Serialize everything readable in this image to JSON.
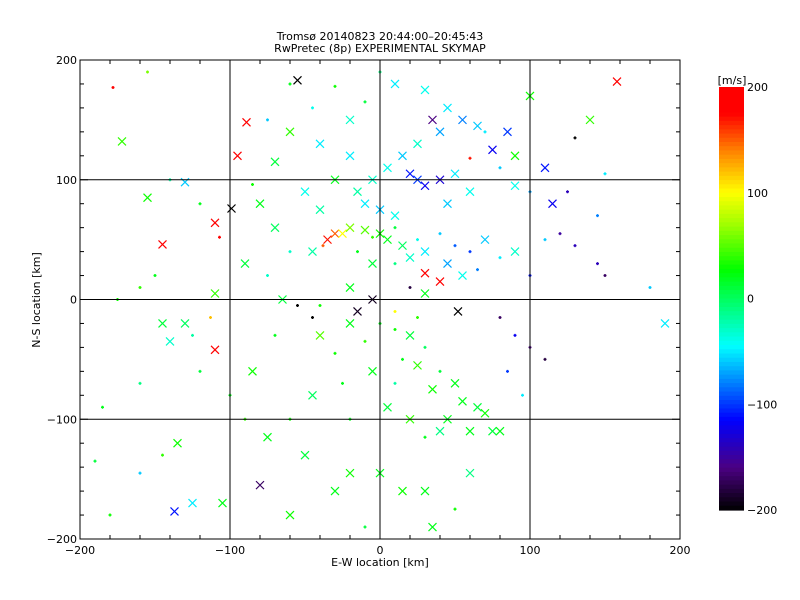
{
  "chart_data": {
    "type": "scatter",
    "title": "Tromsø 20140823 20:44:00–20:45:43",
    "subtitle": "RwPretec (8p) EXPERIMENTAL SKYMAP",
    "xlabel": "E-W location [km]",
    "ylabel": "N-S location [km]",
    "xlim": [
      -200,
      200
    ],
    "ylim": [
      -200,
      200
    ],
    "xticks": [
      "-200",
      "-100",
      "0",
      "100",
      "200"
    ],
    "yticks": [
      "-200",
      "-100",
      "0",
      "100",
      "200"
    ],
    "grid_lines": [
      -100,
      0,
      100
    ],
    "colorbar": {
      "label": "[m/s]",
      "range": [
        -200,
        200
      ],
      "ticks": [
        "200",
        "100",
        "0",
        "-100",
        "-200"
      ],
      "colormap": [
        [
          -200,
          "#000000"
        ],
        [
          -160,
          "#4b0082"
        ],
        [
          -115,
          "#0000ff"
        ],
        [
          -80,
          "#0080ff"
        ],
        [
          -45,
          "#00ffff"
        ],
        [
          -10,
          "#00ff80"
        ],
        [
          27,
          "#00ff00"
        ],
        [
          70,
          "#a0ff00"
        ],
        [
          100,
          "#ffff00"
        ],
        [
          140,
          "#ff8000"
        ],
        [
          175,
          "#ff0000"
        ],
        [
          200,
          "#ff0000"
        ]
      ]
    },
    "point_fields": [
      "x_km",
      "y_km",
      "velocity_m_s",
      "large_marker"
    ],
    "points": [
      [
        -178,
        177,
        180,
        0
      ],
      [
        -155,
        190,
        60,
        0
      ],
      [
        -172,
        132,
        40,
        1
      ],
      [
        -155,
        85,
        30,
        1
      ],
      [
        -145,
        46,
        190,
        1
      ],
      [
        -140,
        100,
        -20,
        0
      ],
      [
        -130,
        98,
        -60,
        1
      ],
      [
        -150,
        20,
        20,
        0
      ],
      [
        -160,
        10,
        40,
        0
      ],
      [
        -175,
        0,
        30,
        0
      ],
      [
        -145,
        -20,
        10,
        1
      ],
      [
        -130,
        -20,
        0,
        1
      ],
      [
        -125,
        -30,
        -20,
        0
      ],
      [
        -140,
        -35,
        -30,
        1
      ],
      [
        -110,
        -42,
        190,
        1
      ],
      [
        -120,
        -60,
        10,
        0
      ],
      [
        -160,
        -70,
        -10,
        0
      ],
      [
        -185,
        -90,
        20,
        0
      ],
      [
        -135,
        -120,
        30,
        1
      ],
      [
        -145,
        -130,
        40,
        0
      ],
      [
        -190,
        -135,
        10,
        0
      ],
      [
        -160,
        -145,
        -60,
        0
      ],
      [
        -137,
        -177,
        -110,
        1
      ],
      [
        -125,
        -170,
        -50,
        1
      ],
      [
        -105,
        -170,
        20,
        1
      ],
      [
        -180,
        -180,
        30,
        0
      ],
      [
        -80,
        -155,
        -170,
        1
      ],
      [
        -89,
        148,
        190,
        1
      ],
      [
        -99,
        76,
        -200,
        1
      ],
      [
        -110,
        64,
        190,
        1
      ],
      [
        -107,
        52,
        180,
        0
      ],
      [
        -95,
        120,
        190,
        1
      ],
      [
        -120,
        80,
        20,
        0
      ],
      [
        -85,
        96,
        30,
        0
      ],
      [
        -110,
        5,
        40,
        1
      ],
      [
        -113,
        -15,
        120,
        0
      ],
      [
        -60,
        180,
        20,
        0
      ],
      [
        -55,
        183,
        -200,
        1
      ],
      [
        -30,
        178,
        30,
        0
      ],
      [
        -75,
        150,
        -60,
        0
      ],
      [
        -60,
        140,
        40,
        1
      ],
      [
        -40,
        130,
        -50,
        1
      ],
      [
        -45,
        160,
        -40,
        0
      ],
      [
        -20,
        150,
        -30,
        1
      ],
      [
        -10,
        165,
        10,
        0
      ],
      [
        -30,
        100,
        20,
        1
      ],
      [
        -50,
        90,
        -40,
        1
      ],
      [
        -80,
        80,
        20,
        1
      ],
      [
        -70,
        60,
        0,
        1
      ],
      [
        -60,
        40,
        -30,
        0
      ],
      [
        -90,
        30,
        10,
        1
      ],
      [
        -75,
        20,
        -30,
        0
      ],
      [
        -45,
        40,
        -20,
        1
      ],
      [
        -35,
        50,
        170,
        1
      ],
      [
        -30,
        55,
        150,
        1
      ],
      [
        -38,
        45,
        150,
        0
      ],
      [
        -25,
        55,
        100,
        1
      ],
      [
        -20,
        60,
        60,
        1
      ],
      [
        -10,
        58,
        50,
        1
      ],
      [
        -5,
        52,
        40,
        0
      ],
      [
        0,
        55,
        30,
        1
      ],
      [
        5,
        50,
        20,
        1
      ],
      [
        10,
        60,
        10,
        0
      ],
      [
        15,
        45,
        0,
        1
      ],
      [
        -15,
        40,
        20,
        0
      ],
      [
        -5,
        30,
        10,
        1
      ],
      [
        10,
        30,
        -10,
        0
      ],
      [
        20,
        35,
        -30,
        1
      ],
      [
        25,
        50,
        -40,
        0
      ],
      [
        30,
        40,
        -50,
        1
      ],
      [
        40,
        55,
        -60,
        0
      ],
      [
        45,
        30,
        -70,
        1
      ],
      [
        50,
        45,
        -90,
        0
      ],
      [
        55,
        20,
        -40,
        1
      ],
      [
        60,
        40,
        -100,
        0
      ],
      [
        65,
        25,
        -80,
        0
      ],
      [
        70,
        50,
        -60,
        1
      ],
      [
        80,
        35,
        -50,
        0
      ],
      [
        90,
        40,
        -30,
        1
      ],
      [
        100,
        20,
        -110,
        0
      ],
      [
        110,
        50,
        -60,
        0
      ],
      [
        120,
        55,
        -150,
        0
      ],
      [
        130,
        45,
        -140,
        0
      ],
      [
        145,
        30,
        -140,
        0
      ],
      [
        150,
        20,
        -170,
        0
      ],
      [
        180,
        10,
        -60,
        0
      ],
      [
        190,
        -20,
        -50,
        1
      ],
      [
        20,
        10,
        -180,
        0
      ],
      [
        40,
        15,
        200,
        1
      ],
      [
        30,
        22,
        190,
        1
      ],
      [
        -15,
        -10,
        -190,
        1
      ],
      [
        -45,
        -15,
        -200,
        0
      ],
      [
        52,
        -10,
        -200,
        1
      ],
      [
        80,
        -15,
        -170,
        0
      ],
      [
        90,
        -30,
        -120,
        0
      ],
      [
        100,
        -40,
        -160,
        0
      ],
      [
        110,
        -50,
        -180,
        0
      ],
      [
        85,
        -60,
        -100,
        0
      ],
      [
        95,
        -80,
        -50,
        0
      ],
      [
        0,
        -20,
        20,
        0
      ],
      [
        10,
        -25,
        30,
        0
      ],
      [
        20,
        -30,
        10,
        1
      ],
      [
        -10,
        -35,
        40,
        0
      ],
      [
        -20,
        -20,
        20,
        1
      ],
      [
        30,
        -40,
        0,
        0
      ],
      [
        15,
        -50,
        20,
        0
      ],
      [
        25,
        -55,
        40,
        1
      ],
      [
        40,
        -60,
        10,
        0
      ],
      [
        -5,
        -60,
        20,
        1
      ],
      [
        -30,
        -45,
        30,
        0
      ],
      [
        -40,
        -30,
        50,
        1
      ],
      [
        -25,
        -70,
        20,
        0
      ],
      [
        10,
        -70,
        -20,
        0
      ],
      [
        35,
        -75,
        30,
        1
      ],
      [
        50,
        -70,
        20,
        1
      ],
      [
        55,
        -85,
        20,
        1
      ],
      [
        65,
        -90,
        10,
        1
      ],
      [
        70,
        -95,
        30,
        1
      ],
      [
        45,
        -100,
        20,
        1
      ],
      [
        40,
        -110,
        -10,
        1
      ],
      [
        60,
        -110,
        20,
        1
      ],
      [
        75,
        -110,
        10,
        1
      ],
      [
        30,
        -115,
        20,
        0
      ],
      [
        20,
        -100,
        40,
        1
      ],
      [
        5,
        -90,
        10,
        1
      ],
      [
        -20,
        -100,
        20,
        0
      ],
      [
        -45,
        -80,
        0,
        1
      ],
      [
        -60,
        -100,
        30,
        0
      ],
      [
        -75,
        -115,
        20,
        1
      ],
      [
        -50,
        -130,
        10,
        1
      ],
      [
        -30,
        -160,
        20,
        1
      ],
      [
        -20,
        -145,
        30,
        1
      ],
      [
        0,
        -145,
        20,
        1
      ],
      [
        15,
        -160,
        30,
        1
      ],
      [
        30,
        -160,
        20,
        1
      ],
      [
        50,
        -175,
        30,
        0
      ],
      [
        35,
        -190,
        20,
        1
      ],
      [
        -10,
        -190,
        10,
        0
      ],
      [
        60,
        -145,
        -10,
        1
      ],
      [
        80,
        -110,
        20,
        1
      ],
      [
        -60,
        -180,
        30,
        1
      ],
      [
        -90,
        -100,
        40,
        0
      ],
      [
        -100,
        -80,
        20,
        0
      ],
      [
        -85,
        -60,
        30,
        1
      ],
      [
        -70,
        -30,
        20,
        0
      ],
      [
        -55,
        -5,
        -200,
        0
      ],
      [
        -65,
        0,
        10,
        1
      ],
      [
        -40,
        -5,
        30,
        0
      ],
      [
        -20,
        10,
        20,
        1
      ],
      [
        -5,
        0,
        -190,
        1
      ],
      [
        10,
        -10,
        100,
        0
      ],
      [
        25,
        -15,
        40,
        0
      ],
      [
        30,
        5,
        20,
        1
      ],
      [
        0,
        190,
        -10,
        0
      ],
      [
        10,
        180,
        -50,
        1
      ],
      [
        30,
        175,
        -40,
        1
      ],
      [
        45,
        160,
        -50,
        1
      ],
      [
        55,
        150,
        -80,
        1
      ],
      [
        65,
        145,
        -60,
        1
      ],
      [
        75,
        125,
        -120,
        1
      ],
      [
        70,
        140,
        -50,
        0
      ],
      [
        40,
        140,
        -70,
        1
      ],
      [
        25,
        130,
        -30,
        1
      ],
      [
        15,
        120,
        -60,
        1
      ],
      [
        5,
        110,
        -40,
        1
      ],
      [
        20,
        105,
        -110,
        1
      ],
      [
        25,
        100,
        -100,
        1
      ],
      [
        30,
        95,
        -120,
        1
      ],
      [
        40,
        100,
        -130,
        1
      ],
      [
        50,
        105,
        -50,
        1
      ],
      [
        60,
        90,
        -40,
        1
      ],
      [
        -5,
        100,
        -30,
        1
      ],
      [
        -15,
        90,
        -20,
        1
      ],
      [
        -10,
        80,
        -50,
        1
      ],
      [
        0,
        75,
        -60,
        1
      ],
      [
        10,
        70,
        -40,
        1
      ],
      [
        45,
        80,
        -60,
        1
      ],
      [
        80,
        110,
        -60,
        0
      ],
      [
        90,
        95,
        -40,
        1
      ],
      [
        100,
        90,
        -70,
        0
      ],
      [
        110,
        110,
        -110,
        1
      ],
      [
        115,
        80,
        -120,
        1
      ],
      [
        125,
        90,
        -140,
        0
      ],
      [
        145,
        70,
        -80,
        0
      ],
      [
        150,
        105,
        -50,
        0
      ],
      [
        140,
        150,
        40,
        1
      ],
      [
        130,
        135,
        -200,
        0
      ],
      [
        100,
        170,
        30,
        1
      ],
      [
        158,
        182,
        190,
        1
      ],
      [
        85,
        140,
        -100,
        1
      ],
      [
        35,
        150,
        -160,
        1
      ],
      [
        60,
        118,
        170,
        0
      ],
      [
        90,
        120,
        30,
        1
      ],
      [
        -70,
        115,
        10,
        1
      ],
      [
        -40,
        75,
        -20,
        1
      ],
      [
        -20,
        120,
        -50,
        1
      ]
    ]
  }
}
